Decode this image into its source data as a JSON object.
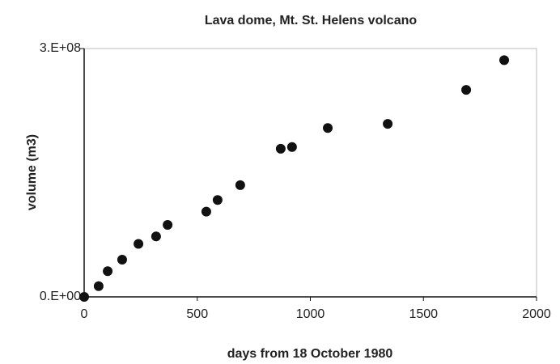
{
  "chart_data": {
    "type": "scatter",
    "title": "Lava dome, Mt. St. Helens volcano",
    "xlabel": "days from 18 October 1980",
    "ylabel": "volume (m3)",
    "x": [
      0,
      64,
      104,
      168,
      240,
      318,
      369,
      540,
      590,
      690,
      869,
      919,
      1077,
      1342,
      1689,
      1857
    ],
    "series": [
      {
        "color": "#111111",
        "values": [
          0,
          13000000,
          31000000,
          45000000,
          64000000,
          73000000,
          87000000,
          103000000,
          117000000,
          135000000,
          179000000,
          181000000,
          204000000,
          209000000,
          250000000,
          286000000
        ]
      }
    ],
    "xlim": [
      0,
      2000
    ],
    "xticks": [
      0,
      500,
      1000,
      1500,
      2000
    ],
    "ylim": [
      0,
      300000000
    ],
    "yticks": [
      {
        "value": 0,
        "label": "0.E+00"
      },
      {
        "value": 300000000,
        "label": "3.E+08"
      }
    ]
  }
}
